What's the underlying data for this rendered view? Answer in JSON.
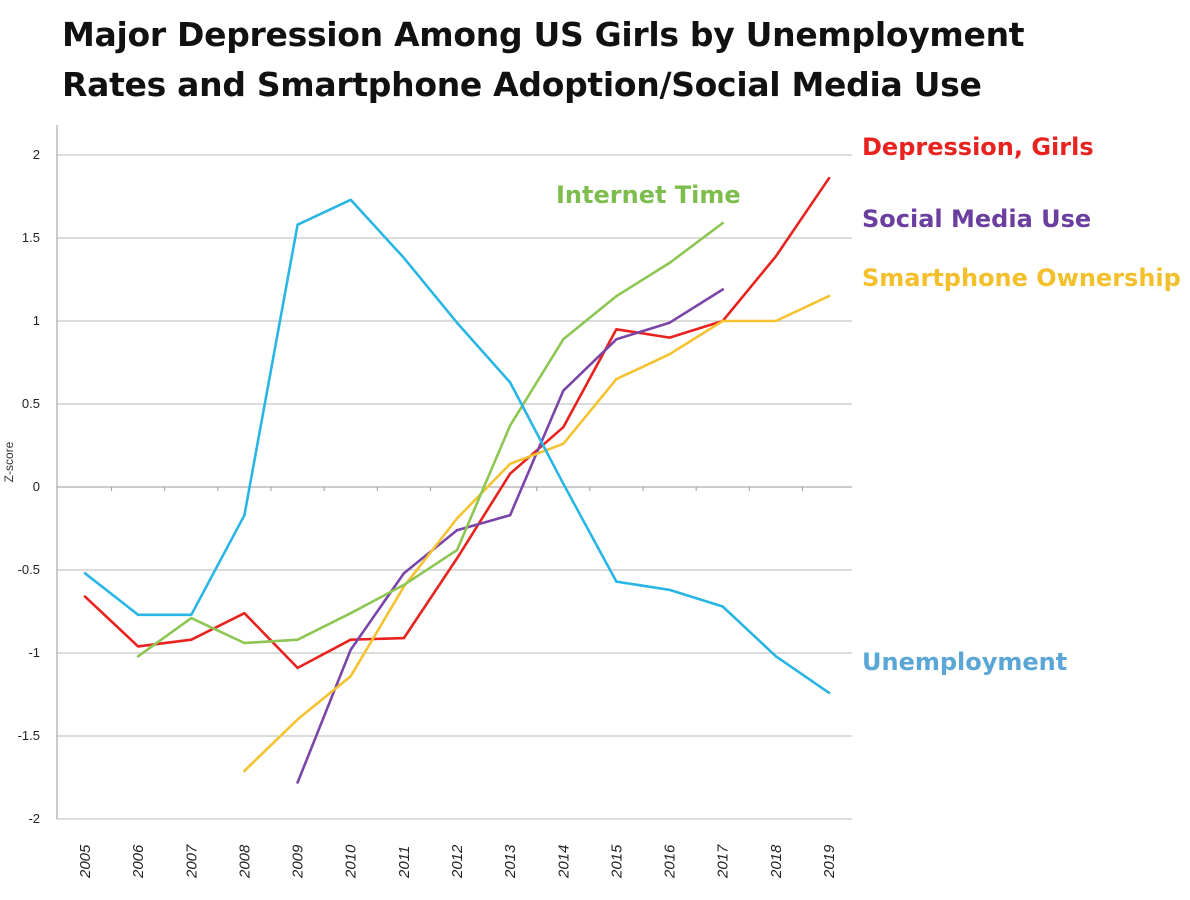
{
  "title_line1": "Major Depression Among US Girls by Unemployment",
  "title_line2": "Rates and Smartphone Adoption/Social Media Use",
  "chart_data": {
    "type": "line",
    "title": "Major Depression Among US Girls by Unemployment Rates and Smartphone Adoption/Social Media Use",
    "xlabel": "",
    "ylabel": "Z-score",
    "ylim": [
      -2,
      2
    ],
    "yticks": [
      "2",
      "1.5",
      "1",
      "0.5",
      "0",
      "-0.5",
      "-1",
      "-1.5",
      "-2"
    ],
    "ytick_values": [
      2,
      1.5,
      1,
      0.5,
      0,
      -0.5,
      -1,
      -1.5,
      -2
    ],
    "categories": [
      "2005",
      "2006",
      "2007",
      "2008",
      "2009",
      "2010",
      "2011",
      "2012",
      "2013",
      "2014",
      "2015",
      "2016",
      "2017",
      "2018",
      "2019"
    ],
    "grid": true,
    "series": [
      {
        "name": "Depression, Girls",
        "color": "#e8231f",
        "values": [
          -0.66,
          -0.96,
          -0.92,
          -0.76,
          -1.09,
          -0.92,
          -0.91,
          -0.43,
          0.08,
          0.36,
          0.95,
          0.9,
          1.0,
          1.39,
          1.86
        ]
      },
      {
        "name": "Social Media Use",
        "color": "#7b45a8",
        "values": [
          null,
          null,
          null,
          null,
          -1.78,
          -0.98,
          -0.52,
          -0.26,
          -0.17,
          0.58,
          0.89,
          0.99,
          1.19,
          null,
          null
        ]
      },
      {
        "name": "Smartphone Ownership",
        "color": "#f5c230",
        "values": [
          null,
          null,
          null,
          -1.71,
          -1.4,
          -1.14,
          -0.6,
          -0.19,
          0.14,
          0.26,
          0.65,
          0.8,
          1.0,
          1.0,
          1.15
        ]
      },
      {
        "name": "Internet Time",
        "color": "#8dc653",
        "values": [
          null,
          -1.02,
          -0.79,
          -0.94,
          -0.92,
          -0.76,
          -0.59,
          -0.38,
          0.37,
          0.89,
          1.15,
          1.35,
          1.59,
          null,
          null
        ]
      },
      {
        "name": "Unemployment",
        "color": "#2ab6e4",
        "values": [
          -0.52,
          -0.77,
          -0.77,
          -0.17,
          1.58,
          1.73,
          1.38,
          0.99,
          0.63,
          0.02,
          -0.57,
          -0.62,
          -0.72,
          -1.02,
          -1.24
        ]
      }
    ],
    "legend": [
      {
        "label": "Depression, Girls",
        "color": "#e8231f",
        "placement": "right-top"
      },
      {
        "label": "Social Media Use",
        "color": "#6b3fa0",
        "placement": "right-upper"
      },
      {
        "label": "Smartphone Ownership",
        "color": "#f3bf2b",
        "placement": "right-upper"
      },
      {
        "label": "Internet Time",
        "color": "#7dbd4e",
        "placement": "in-plot-upper"
      },
      {
        "label": "Unemployment",
        "color": "#5aa6d6",
        "placement": "right-lower"
      }
    ]
  }
}
